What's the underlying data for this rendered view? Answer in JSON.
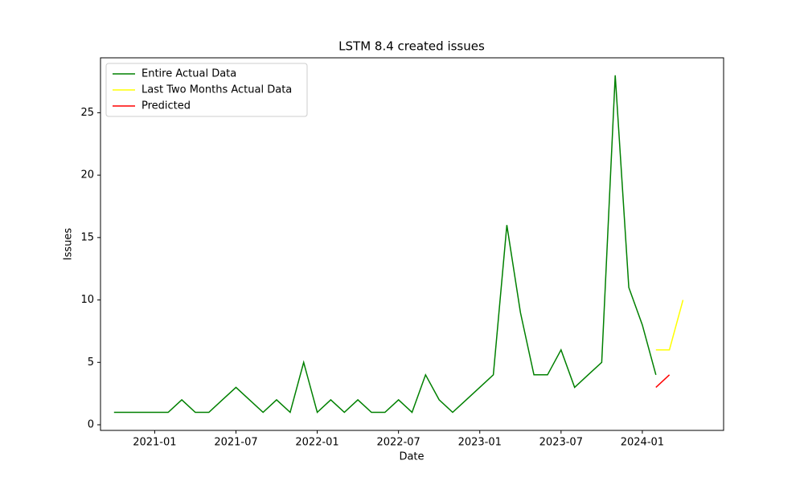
{
  "chart_data": {
    "type": "line",
    "title": "LSTM 8.4 created issues",
    "xlabel": "Date",
    "ylabel": "Issues",
    "series": [
      {
        "name": "Entire Actual Data",
        "color": "#008000",
        "x": [
          "2020-10",
          "2020-11",
          "2020-12",
          "2021-01",
          "2021-02",
          "2021-03",
          "2021-04",
          "2021-05",
          "2021-06",
          "2021-07",
          "2021-08",
          "2021-09",
          "2021-10",
          "2021-11",
          "2021-12",
          "2022-01",
          "2022-02",
          "2022-03",
          "2022-04",
          "2022-05",
          "2022-06",
          "2022-07",
          "2022-08",
          "2022-09",
          "2022-10",
          "2022-11",
          "2022-12",
          "2023-01",
          "2023-02",
          "2023-03",
          "2023-04",
          "2023-05",
          "2023-06",
          "2023-07",
          "2023-08",
          "2023-09",
          "2023-10",
          "2023-11",
          "2023-12",
          "2024-01",
          "2024-02"
        ],
        "values": [
          1,
          1,
          1,
          1,
          1,
          2,
          1,
          1,
          2,
          3,
          2,
          1,
          2,
          1,
          5,
          1,
          2,
          1,
          2,
          1,
          1,
          2,
          1,
          4,
          2,
          1,
          2,
          3,
          4,
          16,
          9,
          4,
          4,
          6,
          3,
          4,
          5,
          28,
          11,
          8,
          4
        ]
      },
      {
        "name": "Last Two Months Actual Data",
        "color": "#ffff00",
        "x": [
          "2024-02",
          "2024-03",
          "2024-04"
        ],
        "values": [
          6,
          6,
          10
        ]
      },
      {
        "name": "Predicted",
        "color": "#ff0000",
        "x": [
          "2024-02",
          "2024-03"
        ],
        "values": [
          3,
          4
        ]
      }
    ],
    "xlim": [
      "2020-09",
      "2024-07"
    ],
    "xticks": [
      "2021-01",
      "2021-07",
      "2022-01",
      "2022-07",
      "2023-01",
      "2023-07",
      "2024-01"
    ],
    "ylim": [
      -0.45,
      29.4
    ],
    "yticks": [
      0,
      5,
      10,
      15,
      20,
      25
    ],
    "legend": "upper left",
    "grid": false
  }
}
